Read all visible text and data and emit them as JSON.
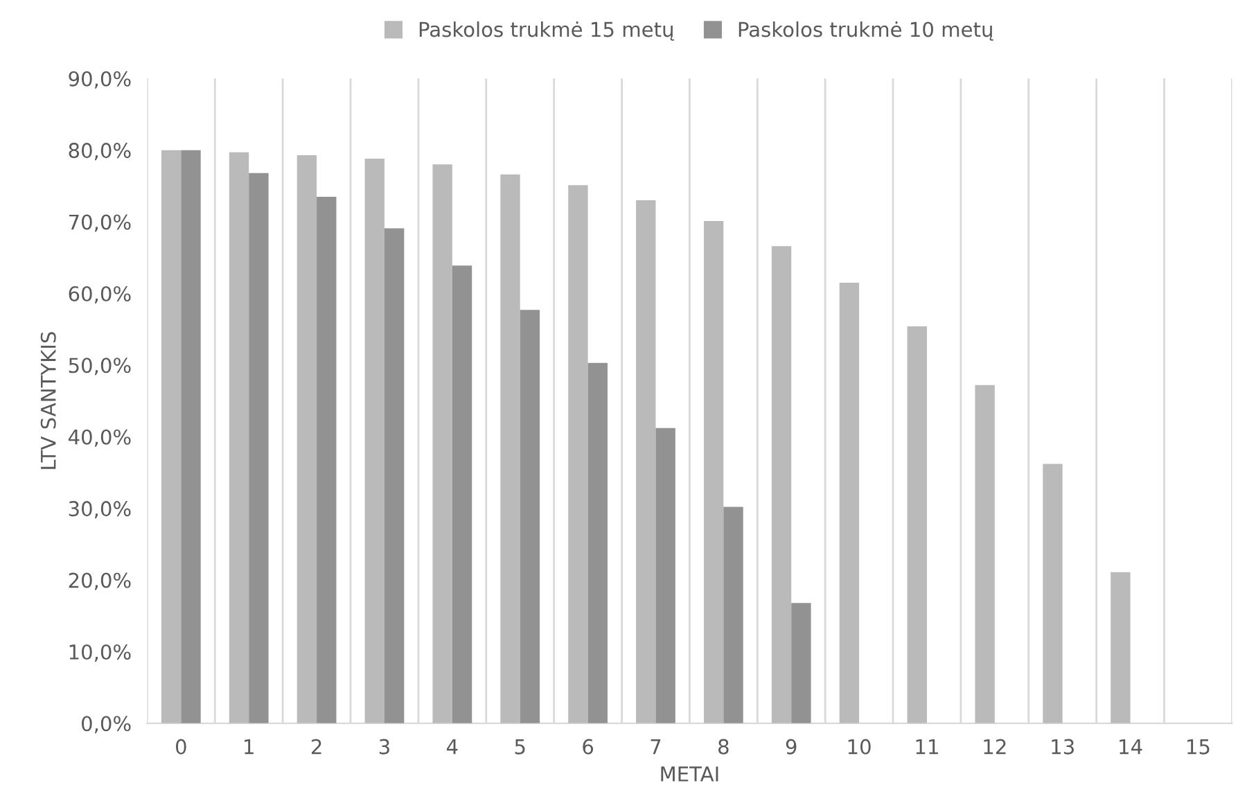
{
  "chart_data": {
    "type": "bar",
    "xlabel": "METAI",
    "ylabel": "LTV SANTYKIS",
    "categories": [
      "0",
      "1",
      "2",
      "3",
      "4",
      "5",
      "6",
      "7",
      "8",
      "9",
      "10",
      "11",
      "12",
      "13",
      "14",
      "15"
    ],
    "series": [
      {
        "name": "Paskolos trukmė 15 metų",
        "color": "#bababa",
        "values": [
          80.0,
          79.7,
          79.3,
          78.8,
          78.0,
          76.6,
          75.1,
          73.0,
          70.1,
          66.6,
          61.5,
          55.4,
          47.2,
          36.2,
          21.1,
          0
        ]
      },
      {
        "name": "Paskolos trukmė 10 metų",
        "color": "#929292",
        "values": [
          80.0,
          76.8,
          73.5,
          69.1,
          63.9,
          57.7,
          50.3,
          41.2,
          30.2,
          16.8,
          0,
          0,
          0,
          0,
          0,
          0
        ]
      }
    ],
    "ylim": [
      0,
      90
    ],
    "yticks": [
      {
        "value": 0,
        "label": "0,0%"
      },
      {
        "value": 10,
        "label": "10,0%"
      },
      {
        "value": 20,
        "label": "20,0%"
      },
      {
        "value": 30,
        "label": "30,0%"
      },
      {
        "value": 40,
        "label": "40,0%"
      },
      {
        "value": 50,
        "label": "50,0%"
      },
      {
        "value": 60,
        "label": "60,0%"
      },
      {
        "value": 70,
        "label": "70,0%"
      },
      {
        "value": 80,
        "label": "80,0%"
      },
      {
        "value": 90,
        "label": "90,0%"
      }
    ],
    "grid": "x",
    "legend": "top"
  }
}
